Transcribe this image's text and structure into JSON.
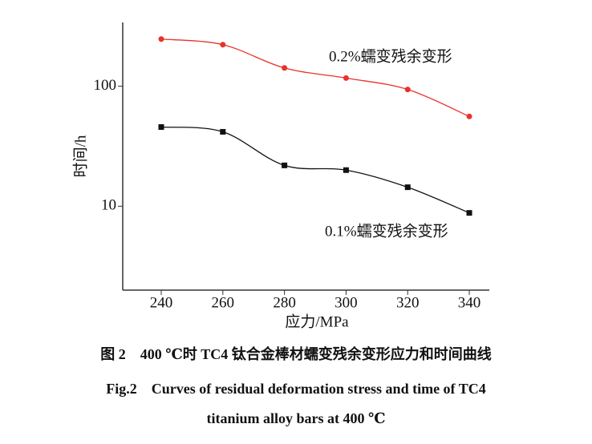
{
  "chart_data": {
    "type": "line",
    "x_label": "应力/MPa",
    "y_label": "时间/h",
    "x": [
      240,
      260,
      280,
      300,
      320,
      340
    ],
    "series": [
      {
        "name": "0.2%蠕变残余变形",
        "color": "#e8322b",
        "marker": "circle",
        "values": [
          247,
          222,
          142,
          117,
          94,
          56
        ]
      },
      {
        "name": "0.1%蠕变残余变形",
        "color": "#111111",
        "marker": "square",
        "values": [
          45.7,
          41.7,
          21.9,
          20,
          14.4,
          8.8
        ]
      }
    ],
    "xlim": [
      227.5,
      346.5
    ],
    "xticks": [
      240,
      260,
      280,
      300,
      320,
      340
    ],
    "ylim": [
      2,
      340
    ],
    "yticks": [
      10,
      100
    ],
    "y_log": true,
    "caption": [
      "图 2　400 ℃时 TC4 钛合金棒材蠕变残余变形应力和时间曲线",
      "Fig.2　Curves of residual deformation stress and time of TC4",
      "titanium alloy bars at 400 ℃"
    ]
  }
}
